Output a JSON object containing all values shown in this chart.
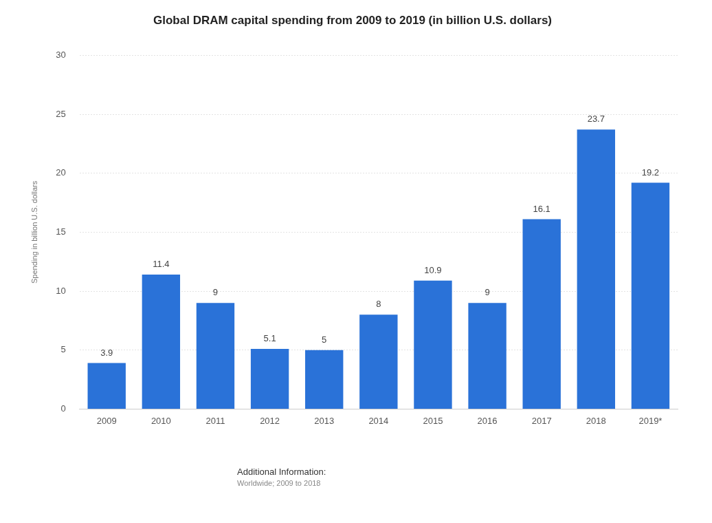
{
  "chart_data": {
    "type": "bar",
    "title": "Global DRAM capital spending from 2009 to 2019 (in billion U.S. dollars)",
    "ylabel": "Spending in billion U.S. dollars",
    "categories": [
      "2009",
      "2010",
      "2011",
      "2012",
      "2013",
      "2014",
      "2015",
      "2016",
      "2017",
      "2018",
      "2019*"
    ],
    "values": [
      3.9,
      11.4,
      9,
      5.1,
      5,
      8,
      10.9,
      9,
      16.1,
      23.7,
      19.2
    ],
    "color": "#2a72d8",
    "ylim": [
      0,
      30
    ],
    "yticks": [
      0,
      5,
      10,
      15,
      20,
      25,
      30
    ],
    "grid": "y",
    "data_labels": true,
    "legend": false,
    "annotations": [
      "Additional Information:",
      "Worldwide; 2009 to 2018"
    ]
  }
}
